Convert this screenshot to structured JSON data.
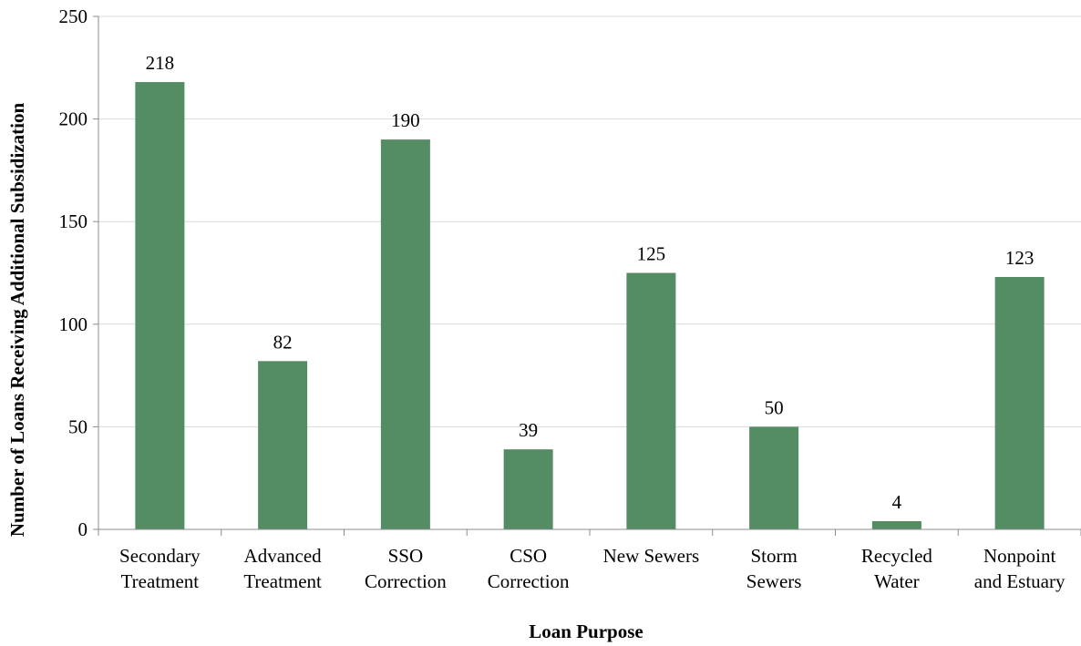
{
  "chart_data": {
    "type": "bar",
    "title": "",
    "xlabel": "Loan Purpose",
    "ylabel": "Number of Loans Receiving Additional Subsidization",
    "ylim": [
      0,
      250
    ],
    "yticks": [
      0,
      50,
      100,
      150,
      200,
      250
    ],
    "grid": true,
    "bar_color": "#548c63",
    "categories": [
      [
        "Secondary",
        "Treatment"
      ],
      [
        "Advanced",
        "Treatment"
      ],
      [
        "SSO",
        "Correction"
      ],
      [
        "CSO",
        "Correction"
      ],
      [
        "New Sewers"
      ],
      [
        "Storm",
        "Sewers"
      ],
      [
        "Recycled",
        "Water"
      ],
      [
        "Nonpoint",
        "and Estuary"
      ]
    ],
    "values": [
      218,
      82,
      190,
      39,
      125,
      50,
      4,
      123
    ],
    "data_labels": [
      "218",
      "82",
      "190",
      "39",
      "125",
      "50",
      "4",
      "123"
    ]
  }
}
